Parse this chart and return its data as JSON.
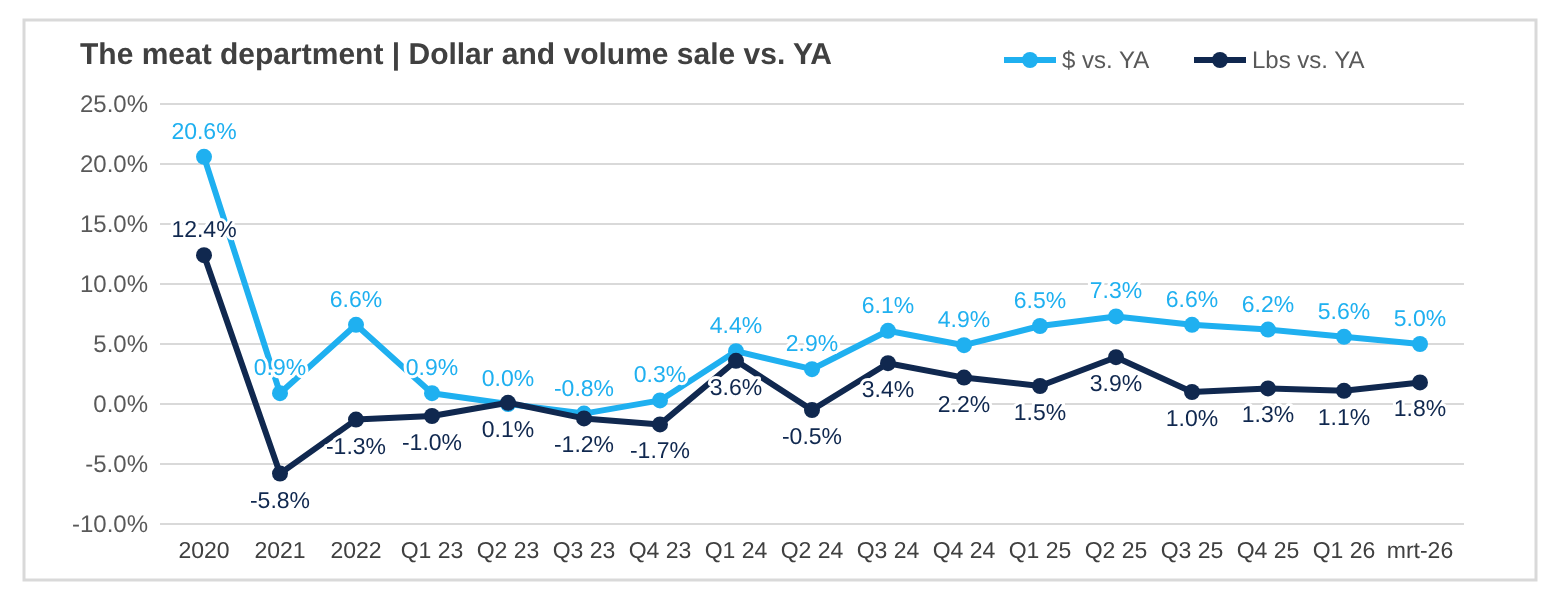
{
  "chart_data": {
    "type": "line",
    "title": "The meat department | Dollar and volume sale vs. YA",
    "categories": [
      "2020",
      "2021",
      "2022",
      "Q1 23",
      "Q2 23",
      "Q3 23",
      "Q4 23",
      "Q1 24",
      "Q2 24",
      "Q3 24",
      "Q4 24",
      "Q1 25",
      "Q2 25",
      "Q3 25",
      "Q4 25",
      "Q1 26",
      "mrt-26"
    ],
    "series": [
      {
        "name": "$ vs. YA",
        "color": "#1fb0f0",
        "values": [
          20.6,
          0.9,
          6.6,
          0.9,
          0.0,
          -0.8,
          0.3,
          4.4,
          2.9,
          6.1,
          4.9,
          6.5,
          7.3,
          6.6,
          6.2,
          5.6,
          5.0
        ],
        "value_labels": [
          "20.6%",
          "0.9%",
          "6.6%",
          "0.9%",
          "0.0%",
          "-0.8%",
          "0.3%",
          "4.4%",
          "2.9%",
          "6.1%",
          "4.9%",
          "6.5%",
          "7.3%",
          "6.6%",
          "6.2%",
          "5.6%",
          "5.0%"
        ]
      },
      {
        "name": "Lbs vs. YA",
        "color": "#10284f",
        "values": [
          12.4,
          -5.8,
          -1.3,
          -1.0,
          0.1,
          -1.2,
          -1.7,
          3.6,
          -0.5,
          3.4,
          2.2,
          1.5,
          3.9,
          1.0,
          1.3,
          1.1,
          1.8
        ],
        "value_labels": [
          "12.4%",
          "-5.8%",
          "-1.3%",
          "-1.0%",
          "0.1%",
          "-1.2%",
          "-1.7%",
          "3.6%",
          "-0.5%",
          "3.4%",
          "2.2%",
          "1.5%",
          "3.9%",
          "1.0%",
          "1.3%",
          "1.1%",
          "1.8%"
        ]
      }
    ],
    "ylim": [
      -10,
      25
    ],
    "yticks": [
      {
        "value": -10,
        "label": "-10.0%"
      },
      {
        "value": -5,
        "label": "-5.0%"
      },
      {
        "value": 0,
        "label": "0.0%"
      },
      {
        "value": 5,
        "label": "5.0%"
      },
      {
        "value": 10,
        "label": "10.0%"
      },
      {
        "value": 15,
        "label": "15.0%"
      },
      {
        "value": 20,
        "label": "20.0%"
      },
      {
        "value": 25,
        "label": "25.0%"
      }
    ],
    "grid": "y",
    "legend": "top right",
    "marker": "circle",
    "line_style": "solid"
  }
}
